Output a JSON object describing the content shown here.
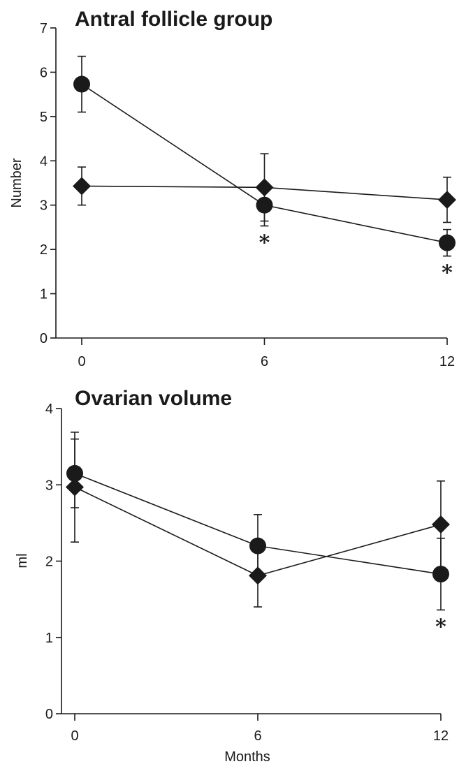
{
  "chart_data": [
    {
      "type": "line",
      "title": "Antral follicle group",
      "xlabel": "",
      "ylabel": "Number",
      "x": [
        0,
        6,
        12
      ],
      "xticks": [
        "0",
        "6",
        "12"
      ],
      "yticks": [
        "0",
        "1",
        "2",
        "3",
        "4",
        "5",
        "6",
        "7"
      ],
      "ylim": [
        0,
        7
      ],
      "grid": false,
      "legend": "none",
      "series": [
        {
          "marker": "circle",
          "values": [
            5.73,
            3.0,
            2.15
          ],
          "error": [
            0.63,
            0.47,
            0.3
          ]
        },
        {
          "marker": "diamond",
          "values": [
            3.43,
            3.4,
            3.12
          ],
          "error": [
            0.43,
            0.76,
            0.51
          ]
        }
      ],
      "annotations": [
        {
          "x": 6,
          "text": "*"
        },
        {
          "x": 12,
          "text": "*"
        }
      ]
    },
    {
      "type": "line",
      "title": "Ovarian volume",
      "xlabel": "Months",
      "ylabel": "ml",
      "x": [
        0,
        6,
        12
      ],
      "xticks": [
        "0",
        "6",
        "12"
      ],
      "yticks": [
        "0",
        "1",
        "2",
        "3",
        "4"
      ],
      "ylim": [
        0,
        4
      ],
      "grid": false,
      "legend": "none",
      "series": [
        {
          "marker": "circle",
          "values": [
            3.15,
            2.2,
            1.83
          ],
          "error": [
            0.45,
            0.41,
            0.47
          ]
        },
        {
          "marker": "diamond",
          "values": [
            2.97,
            1.81,
            2.48
          ],
          "error": [
            0.72,
            0.41,
            0.57
          ]
        }
      ],
      "annotations": [
        {
          "x": 12,
          "text": "*"
        }
      ]
    }
  ]
}
